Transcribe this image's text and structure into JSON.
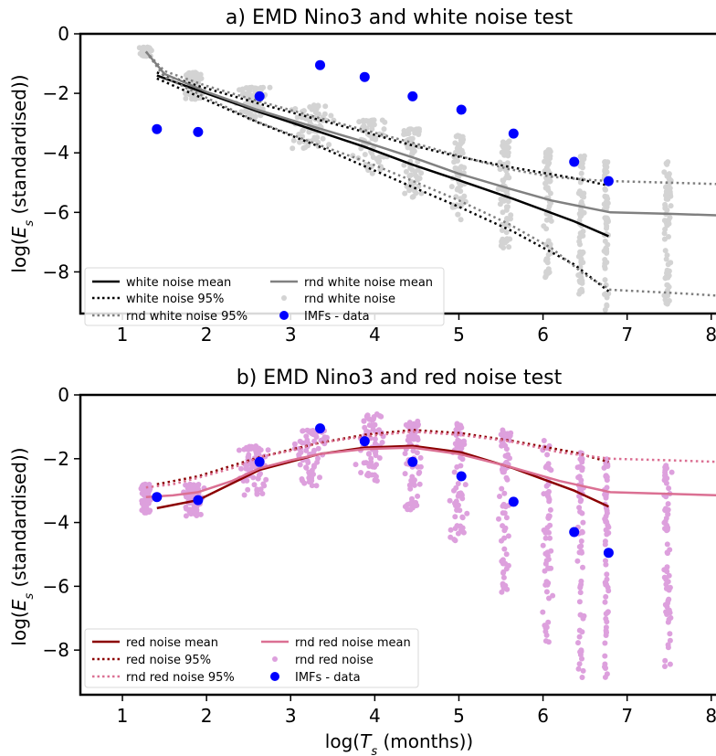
{
  "chart_data": [
    {
      "type": "scatter",
      "title": "a) EMD Nino3 and white noise test",
      "xlabel": "",
      "ylabel": "log(E_s (standardised))",
      "xlim": [
        0.5,
        8.1
      ],
      "ylim": [
        -9.4,
        0.0
      ],
      "xticks": [
        "1",
        "2",
        "3",
        "4",
        "5",
        "6",
        "7",
        "8"
      ],
      "yticks": [
        "0",
        "−2",
        "−4",
        "−6",
        "−8"
      ],
      "xtick_values": [
        1,
        2,
        3,
        4,
        5,
        6,
        7,
        8
      ],
      "ytick_values": [
        0,
        -2,
        -4,
        -6,
        -8
      ],
      "legend_position": "lower-left",
      "colors": {
        "mean": "#000000",
        "rnd_mean": "#808080",
        "cloud": "#d3d3d3",
        "imf": "#0000ff"
      },
      "series": [
        {
          "name": "white noise mean",
          "style": "solid",
          "x": [
            1.41,
            1.9,
            2.63,
            3.35,
            3.88,
            4.45,
            5.03,
            5.65,
            6.37,
            6.78
          ],
          "y": [
            -1.4,
            -1.9,
            -2.63,
            -3.3,
            -3.8,
            -4.4,
            -4.95,
            -5.55,
            -6.3,
            -6.8
          ]
        },
        {
          "name": "white noise 95%",
          "style": "dotted",
          "upper": true,
          "x": [
            1.41,
            1.9,
            2.63,
            3.35,
            3.88,
            4.45,
            5.03,
            5.65,
            6.37,
            6.78
          ],
          "y": [
            -1.3,
            -1.75,
            -2.35,
            -2.9,
            -3.3,
            -3.75,
            -4.15,
            -4.5,
            -4.85,
            -5.1
          ]
        },
        {
          "name": "",
          "style": "dotted",
          "lower": true,
          "x": [
            1.41,
            1.9,
            2.63,
            3.35,
            3.88,
            4.45,
            5.03,
            5.65,
            6.37,
            6.78
          ],
          "y": [
            -1.5,
            -2.1,
            -3.0,
            -3.8,
            -4.45,
            -5.15,
            -5.85,
            -6.65,
            -7.75,
            -8.65
          ]
        },
        {
          "name": "rnd white noise mean",
          "style": "solid",
          "x": [
            1.28,
            1.5,
            2.0,
            2.6,
            3.3,
            3.9,
            4.5,
            5.0,
            5.6,
            6.1,
            6.8,
            7.5,
            8.1
          ],
          "y": [
            -0.6,
            -1.35,
            -1.95,
            -2.55,
            -3.15,
            -3.65,
            -4.2,
            -4.7,
            -5.2,
            -5.6,
            -6.0,
            -6.05,
            -6.1
          ]
        },
        {
          "name": "rnd white noise 95%",
          "style": "dotted",
          "x": [
            1.28,
            1.5,
            2.0,
            2.6,
            3.3,
            3.9,
            4.5,
            5.0,
            5.6,
            6.1,
            6.5,
            6.8,
            7.5,
            8.1
          ],
          "y": [
            -0.6,
            -1.25,
            -1.75,
            -2.25,
            -2.8,
            -3.25,
            -3.7,
            -4.1,
            -4.55,
            -4.8,
            -4.9,
            -4.95,
            -5.0,
            -5.05
          ]
        },
        {
          "name": "",
          "style": "dotted",
          "x": [
            1.28,
            1.5,
            2.0,
            2.6,
            3.3,
            3.9,
            4.5,
            5.0,
            5.6,
            6.1,
            6.5,
            6.8,
            7.5,
            8.1
          ],
          "y": [
            -0.6,
            -1.45,
            -2.15,
            -2.95,
            -3.7,
            -4.3,
            -5.0,
            -5.6,
            -6.4,
            -7.2,
            -8.1,
            -8.6,
            -8.7,
            -8.8
          ]
        }
      ],
      "cloud_name": "rnd white noise",
      "cloud_clusters": [
        {
          "x": 1.28,
          "ymin": -0.75,
          "ymax": -0.45,
          "spread": 0.1
        },
        {
          "x": 1.85,
          "ymin": -2.2,
          "ymax": -1.3,
          "spread": 0.15
        },
        {
          "x": 2.55,
          "ymin": -2.9,
          "ymax": -1.8,
          "spread": 0.22
        },
        {
          "x": 3.25,
          "ymin": -3.9,
          "ymax": -2.4,
          "spread": 0.3
        },
        {
          "x": 3.95,
          "ymin": -4.7,
          "ymax": -2.9,
          "spread": 0.25
        },
        {
          "x": 4.45,
          "ymin": -5.5,
          "ymax": -3.2,
          "spread": 0.15
        },
        {
          "x": 5.0,
          "ymin": -6.3,
          "ymax": -3.4,
          "spread": 0.12
        },
        {
          "x": 5.55,
          "ymin": -7.2,
          "ymax": -3.6,
          "spread": 0.1
        },
        {
          "x": 6.05,
          "ymin": -8.2,
          "ymax": -3.9,
          "spread": 0.07
        },
        {
          "x": 6.45,
          "ymin": -8.8,
          "ymax": -4.1,
          "spread": 0.05
        },
        {
          "x": 6.75,
          "ymin": -9.3,
          "ymax": -4.3,
          "spread": 0.04
        },
        {
          "x": 7.48,
          "ymin": -9.3,
          "ymax": -4.3,
          "spread": 0.06
        }
      ],
      "imfs_name": "IMFs - data",
      "imfs": {
        "x": [
          1.41,
          1.9,
          2.63,
          3.35,
          3.88,
          4.45,
          5.03,
          5.65,
          6.37,
          6.78
        ],
        "y": [
          -3.2,
          -3.3,
          -2.1,
          -1.05,
          -1.45,
          -2.1,
          -2.55,
          -3.35,
          -4.3,
          -4.95
        ]
      }
    },
    {
      "type": "scatter",
      "title": "b) EMD Nino3 and red noise test",
      "xlabel": "log(T_s (months))",
      "ylabel": "log(E_s (standardised))",
      "xlim": [
        0.5,
        8.1
      ],
      "ylim": [
        -9.4,
        0.0
      ],
      "xticks": [
        "1",
        "2",
        "3",
        "4",
        "5",
        "6",
        "7",
        "8"
      ],
      "yticks": [
        "0",
        "−2",
        "−4",
        "−6",
        "−8"
      ],
      "xtick_values": [
        1,
        2,
        3,
        4,
        5,
        6,
        7,
        8
      ],
      "ytick_values": [
        0,
        -2,
        -4,
        -6,
        -8
      ],
      "legend_position": "lower-left",
      "colors": {
        "mean": "#8b0000",
        "rnd_mean": "#db7093",
        "cloud": "#dda0dd",
        "imf": "#0000ff"
      },
      "series": [
        {
          "name": "red noise mean",
          "style": "solid",
          "x": [
            1.41,
            1.9,
            2.63,
            3.35,
            3.88,
            4.45,
            5.03,
            5.65,
            6.37,
            6.78
          ],
          "y": [
            -3.55,
            -3.3,
            -2.35,
            -1.85,
            -1.65,
            -1.6,
            -1.8,
            -2.3,
            -3.0,
            -3.5
          ]
        },
        {
          "name": "red noise 95%",
          "style": "dotted",
          "x": [
            1.41,
            1.9,
            2.63,
            3.35,
            3.88,
            4.45,
            5.03,
            5.65,
            6.37,
            6.78
          ],
          "y": [
            -2.8,
            -2.55,
            -1.95,
            -1.5,
            -1.25,
            -1.1,
            -1.2,
            -1.45,
            -1.8,
            -2.1
          ]
        },
        {
          "name": "rnd red noise mean",
          "style": "solid",
          "x": [
            1.28,
            1.6,
            1.9,
            2.3,
            2.63,
            3.0,
            3.35,
            3.88,
            4.45,
            5.0,
            5.6,
            6.2,
            6.8,
            7.5,
            8.1
          ],
          "y": [
            -3.2,
            -3.15,
            -3.05,
            -2.7,
            -2.3,
            -2.05,
            -1.85,
            -1.7,
            -1.65,
            -1.85,
            -2.25,
            -2.7,
            -3.05,
            -3.1,
            -3.15
          ]
        },
        {
          "name": "rnd red noise 95%",
          "style": "dotted",
          "x": [
            1.28,
            1.6,
            1.9,
            2.3,
            2.63,
            3.0,
            3.35,
            3.88,
            4.45,
            5.0,
            5.6,
            6.2,
            6.8,
            7.5,
            8.1
          ],
          "y": [
            -2.9,
            -2.8,
            -2.6,
            -2.3,
            -1.95,
            -1.75,
            -1.5,
            -1.3,
            -1.15,
            -1.25,
            -1.45,
            -1.8,
            -2.0,
            -2.05,
            -2.1
          ]
        }
      ],
      "cloud_name": "rnd red noise",
      "cloud_clusters": [
        {
          "x": 1.28,
          "ymin": -3.7,
          "ymax": -2.8,
          "spread": 0.08
        },
        {
          "x": 1.85,
          "ymin": -3.8,
          "ymax": -2.8,
          "spread": 0.15
        },
        {
          "x": 2.55,
          "ymin": -3.2,
          "ymax": -1.6,
          "spread": 0.22
        },
        {
          "x": 3.25,
          "ymin": -2.9,
          "ymax": -1.1,
          "spread": 0.3
        },
        {
          "x": 3.95,
          "ymin": -2.7,
          "ymax": -0.6,
          "spread": 0.25
        },
        {
          "x": 4.45,
          "ymin": -3.6,
          "ymax": -0.8,
          "spread": 0.15
        },
        {
          "x": 5.0,
          "ymin": -4.6,
          "ymax": -0.9,
          "spread": 0.12
        },
        {
          "x": 5.55,
          "ymin": -6.2,
          "ymax": -1.1,
          "spread": 0.1
        },
        {
          "x": 6.05,
          "ymin": -7.8,
          "ymax": -1.4,
          "spread": 0.07
        },
        {
          "x": 6.45,
          "ymin": -8.9,
          "ymax": -1.8,
          "spread": 0.05
        },
        {
          "x": 6.75,
          "ymin": -9.0,
          "ymax": -2.0,
          "spread": 0.04
        },
        {
          "x": 7.48,
          "ymin": -9.2,
          "ymax": -2.2,
          "spread": 0.06
        }
      ],
      "imfs_name": "IMFs - data",
      "imfs": {
        "x": [
          1.41,
          1.9,
          2.63,
          3.35,
          3.88,
          4.45,
          5.03,
          5.65,
          6.37,
          6.78
        ],
        "y": [
          -3.2,
          -3.3,
          -2.1,
          -1.05,
          -1.45,
          -2.1,
          -2.55,
          -3.35,
          -4.3,
          -4.95
        ]
      }
    }
  ]
}
